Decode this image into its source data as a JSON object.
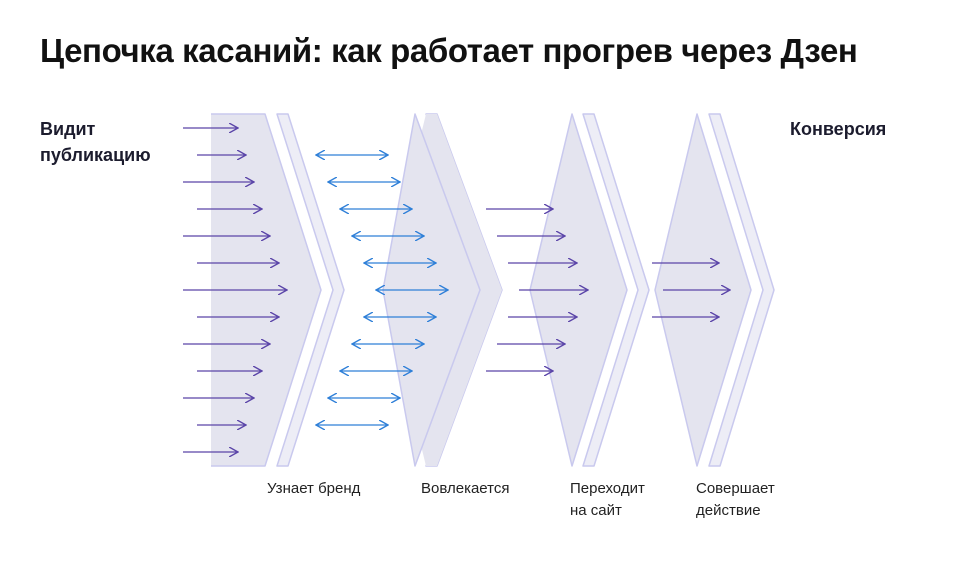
{
  "title": "Цепочка касаний: как работает прогрев через Дзен",
  "start_label": [
    "Видит",
    "публикацию"
  ],
  "end_label": "Конверсия",
  "stages": [
    {
      "lines": [
        "Узнает бренд"
      ]
    },
    {
      "lines": [
        "Вовлекается"
      ]
    },
    {
      "lines": [
        "Переходит",
        "на сайт"
      ]
    },
    {
      "lines": [
        "Совершает",
        "действие"
      ]
    }
  ],
  "colors": {
    "purple_arrow": "#5a44a8",
    "blue_arrow": "#2e7fd8",
    "chevron_fill": "#e4e4ef",
    "chevron_back": "#ededf6",
    "chevron_stroke": "#c9c9ee"
  }
}
